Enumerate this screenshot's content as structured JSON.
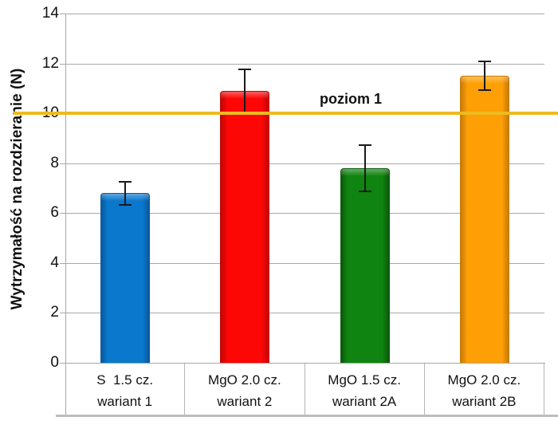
{
  "chart_data": {
    "type": "bar",
    "title": "",
    "xlabel": "",
    "ylabel": "Wytrzymałość na rozdzieranie (N)",
    "ylim": [
      0,
      14
    ],
    "yticks": [
      0,
      2,
      4,
      6,
      8,
      10,
      12,
      14
    ],
    "grid": true,
    "legend": "none",
    "categories": [
      "S  1.5 cz.",
      "MgO 2.0 cz.",
      "MgO 1.5 cz.",
      "MgO 2.0 cz."
    ],
    "category_variants": [
      "wariant 1",
      "wariant 2",
      "wariant 2A",
      "wariant 2B"
    ],
    "values": [
      6.8,
      10.9,
      7.8,
      11.5
    ],
    "error_bars": [
      0.5,
      0.9,
      0.95,
      0.6
    ],
    "bar_colors": [
      "#0a78cd",
      "#fc0606",
      "#108410",
      "#fe9f05"
    ],
    "bar_edge_colors": [
      "#085a9e",
      "#c00606",
      "#0b5a0b",
      "#c87b06"
    ],
    "reference_line": {
      "value": 10,
      "label": "poziom 1",
      "color": "#eeba20"
    },
    "colors": {
      "grid": "#a8a8a8",
      "axis": "#a8a8a8",
      "error_bar": "#1a1a1a",
      "background": "#ffffff",
      "text": "#111111",
      "category_border": "#b5b5b5"
    }
  }
}
